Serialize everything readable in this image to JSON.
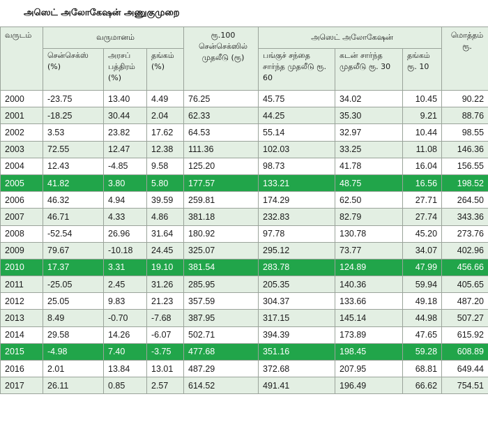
{
  "title": "அஸெட் அலோகேஷன் அணுகுமுறை",
  "headers": {
    "year": "வருடம்",
    "returns_group": "வருமானம்",
    "sensex_pct": "சென்செக்ஸ் (%)",
    "govt_bond_pct": "அரசப் பத்திரம் (%)",
    "gold_pct": "தங்கம் (%)",
    "sensex100": "ரூ.100 சென்செக்ஸில் முதலீடு (ரூ)",
    "allocation_group": "அஸெட் அலோகேஷன்",
    "equity60": "பங்குச் சந்தை சார்ந்த முதலீடு ரூ. 60",
    "debt30": "கடன் சார்ந்த முதலீடு ரூ. 30",
    "gold10": "தங்கம் ரூ. 10",
    "total": "மொத்தம் ரூ."
  },
  "highlight_color": "#21a54a",
  "rows": [
    {
      "year": "2000",
      "sensex": "-23.75",
      "bond": "13.40",
      "gold": "4.49",
      "s100": "76.25",
      "eq": "45.75",
      "debt": "34.02",
      "gold10": "10.45",
      "total": "90.22",
      "hl": false
    },
    {
      "year": "2001",
      "sensex": "-18.25",
      "bond": "30.44",
      "gold": "2.04",
      "s100": "62.33",
      "eq": "44.25",
      "debt": "35.30",
      "gold10": "9.21",
      "total": "88.76",
      "hl": false
    },
    {
      "year": "2002",
      "sensex": "3.53",
      "bond": "23.82",
      "gold": "17.62",
      "s100": "64.53",
      "eq": "55.14",
      "debt": "32.97",
      "gold10": "10.44",
      "total": "98.55",
      "hl": false
    },
    {
      "year": "2003",
      "sensex": "72.55",
      "bond": "12.47",
      "gold": "12.38",
      "s100": "111.36",
      "eq": "102.03",
      "debt": "33.25",
      "gold10": "11.08",
      "total": "146.36",
      "hl": false
    },
    {
      "year": "2004",
      "sensex": "12.43",
      "bond": "-4.85",
      "gold": "9.58",
      "s100": "125.20",
      "eq": "98.73",
      "debt": "41.78",
      "gold10": "16.04",
      "total": "156.55",
      "hl": false
    },
    {
      "year": "2005",
      "sensex": "41.82",
      "bond": "3.80",
      "gold": "5.80",
      "s100": "177.57",
      "eq": "133.21",
      "debt": "48.75",
      "gold10": "16.56",
      "total": "198.52",
      "hl": true
    },
    {
      "year": "2006",
      "sensex": "46.32",
      "bond": "4.94",
      "gold": "39.59",
      "s100": "259.81",
      "eq": "174.29",
      "debt": "62.50",
      "gold10": "27.71",
      "total": "264.50",
      "hl": false
    },
    {
      "year": "2007",
      "sensex": "46.71",
      "bond": "4.33",
      "gold": "4.86",
      "s100": "381.18",
      "eq": "232.83",
      "debt": "82.79",
      "gold10": "27.74",
      "total": "343.36",
      "hl": false
    },
    {
      "year": "2008",
      "sensex": "-52.54",
      "bond": "26.96",
      "gold": "31.64",
      "s100": "180.92",
      "eq": "97.78",
      "debt": "130.78",
      "gold10": "45.20",
      "total": "273.76",
      "hl": false
    },
    {
      "year": "2009",
      "sensex": "79.67",
      "bond": "-10.18",
      "gold": "24.45",
      "s100": "325.07",
      "eq": "295.12",
      "debt": "73.77",
      "gold10": "34.07",
      "total": "402.96",
      "hl": false
    },
    {
      "year": "2010",
      "sensex": "17.37",
      "bond": "3.31",
      "gold": "19.10",
      "s100": "381.54",
      "eq": "283.78",
      "debt": "124.89",
      "gold10": "47.99",
      "total": "456.66",
      "hl": true
    },
    {
      "year": "2011",
      "sensex": "-25.05",
      "bond": "2.45",
      "gold": "31.26",
      "s100": "285.95",
      "eq": "205.35",
      "debt": "140.36",
      "gold10": "59.94",
      "total": "405.65",
      "hl": false
    },
    {
      "year": "2012",
      "sensex": "25.05",
      "bond": "9.83",
      "gold": "21.23",
      "s100": "357.59",
      "eq": "304.37",
      "debt": "133.66",
      "gold10": "49.18",
      "total": "487.20",
      "hl": false
    },
    {
      "year": "2013",
      "sensex": "8.49",
      "bond": "-0.70",
      "gold": "-7.68",
      "s100": "387.95",
      "eq": "317.15",
      "debt": "145.14",
      "gold10": "44.98",
      "total": "507.27",
      "hl": false
    },
    {
      "year": "2014",
      "sensex": "29.58",
      "bond": "14.26",
      "gold": "-6.07",
      "s100": "502.71",
      "eq": "394.39",
      "debt": "173.89",
      "gold10": "47.65",
      "total": "615.92",
      "hl": false
    },
    {
      "year": "2015",
      "sensex": "-4.98",
      "bond": "7.40",
      "gold": "-3.75",
      "s100": "477.68",
      "eq": "351.16",
      "debt": "198.45",
      "gold10": "59.28",
      "total": "608.89",
      "hl": true
    },
    {
      "year": "2016",
      "sensex": "2.01",
      "bond": "13.84",
      "gold": "13.01",
      "s100": "487.29",
      "eq": "372.68",
      "debt": "207.95",
      "gold10": "68.81",
      "total": "649.44",
      "hl": false
    },
    {
      "year": "2017",
      "sensex": "26.11",
      "bond": "0.85",
      "gold": "2.57",
      "s100": "614.52",
      "eq": "491.41",
      "debt": "196.49",
      "gold10": "66.62",
      "total": "754.51",
      "hl": false
    }
  ]
}
